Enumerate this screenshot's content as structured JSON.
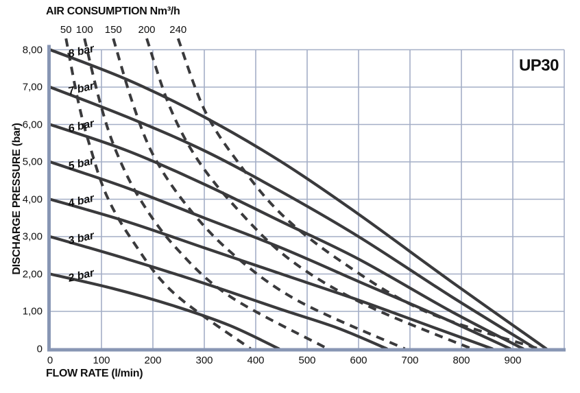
{
  "model_label": "UP30",
  "chart_data": {
    "type": "line",
    "title": "AIR CONSUMPTION Nm³/h",
    "xlabel": "FLOW RATE (l/min)",
    "ylabel": "DISCHARGE PRESSURE (bar)",
    "xlim": [
      0,
      1000
    ],
    "ylim": [
      0,
      8
    ],
    "grid": true,
    "legend_position": "none",
    "x_ticks": [
      {
        "v": 0,
        "label": "0"
      },
      {
        "v": 100,
        "label": "100"
      },
      {
        "v": 200,
        "label": "200"
      },
      {
        "v": 300,
        "label": "300"
      },
      {
        "v": 400,
        "label": "400"
      },
      {
        "v": 500,
        "label": "500"
      },
      {
        "v": 600,
        "label": "600"
      },
      {
        "v": 700,
        "label": "700"
      },
      {
        "v": 800,
        "label": "800"
      },
      {
        "v": 900,
        "label": "900"
      }
    ],
    "y_ticks": [
      {
        "v": 8,
        "label": "8,00"
      },
      {
        "v": 7,
        "label": "7,00"
      },
      {
        "v": 6,
        "label": "6,00"
      },
      {
        "v": 5,
        "label": "5,00"
      },
      {
        "v": 4,
        "label": "4,00"
      },
      {
        "v": 3,
        "label": "3,00"
      },
      {
        "v": 2,
        "label": "2,00"
      },
      {
        "v": 1,
        "label": "1,00"
      },
      {
        "v": 0,
        "label": "0"
      }
    ],
    "pressure_curves": [
      {
        "label": "8 bar",
        "start_pressure": 8,
        "max_flow": 965,
        "points": [
          [
            0,
            8.0
          ],
          [
            150,
            7.2
          ],
          [
            300,
            6.2
          ],
          [
            450,
            5.0
          ],
          [
            600,
            3.6
          ],
          [
            780,
            1.8
          ],
          [
            965,
            0
          ]
        ]
      },
      {
        "label": "7 bar",
        "start_pressure": 7,
        "max_flow": 945,
        "points": [
          [
            0,
            7.0
          ],
          [
            150,
            6.2
          ],
          [
            300,
            5.3
          ],
          [
            450,
            4.2
          ],
          [
            600,
            3.0
          ],
          [
            780,
            1.4
          ],
          [
            945,
            0
          ]
        ]
      },
      {
        "label": "6 bar",
        "start_pressure": 6,
        "max_flow": 920,
        "points": [
          [
            0,
            6.0
          ],
          [
            150,
            5.3
          ],
          [
            300,
            4.4
          ],
          [
            450,
            3.4
          ],
          [
            600,
            2.4
          ],
          [
            780,
            1.0
          ],
          [
            920,
            0
          ]
        ]
      },
      {
        "label": "5 bar",
        "start_pressure": 5,
        "max_flow": 895,
        "points": [
          [
            0,
            5.0
          ],
          [
            150,
            4.3
          ],
          [
            300,
            3.5
          ],
          [
            450,
            2.7
          ],
          [
            600,
            1.8
          ],
          [
            760,
            0.85
          ],
          [
            895,
            0
          ]
        ]
      },
      {
        "label": "4 bar",
        "start_pressure": 4,
        "max_flow": 860,
        "points": [
          [
            0,
            4.0
          ],
          [
            150,
            3.4
          ],
          [
            300,
            2.7
          ],
          [
            450,
            2.0
          ],
          [
            600,
            1.3
          ],
          [
            740,
            0.6
          ],
          [
            860,
            0
          ]
        ]
      },
      {
        "label": "3 bar",
        "start_pressure": 3,
        "max_flow": 655,
        "points": [
          [
            0,
            3.0
          ],
          [
            150,
            2.4
          ],
          [
            300,
            1.75
          ],
          [
            450,
            1.05
          ],
          [
            560,
            0.55
          ],
          [
            655,
            0
          ]
        ]
      },
      {
        "label": "2 bar",
        "start_pressure": 2,
        "max_flow": 445,
        "points": [
          [
            0,
            2.0
          ],
          [
            120,
            1.62
          ],
          [
            240,
            1.15
          ],
          [
            350,
            0.62
          ],
          [
            445,
            0
          ]
        ]
      }
    ],
    "air_curves": [
      {
        "label": "50",
        "label_flow": 31,
        "max_flow": 390,
        "points": [
          [
            31,
            8.3
          ],
          [
            55,
            6.6
          ],
          [
            78,
            5.4
          ],
          [
            110,
            4.1
          ],
          [
            160,
            2.9
          ],
          [
            240,
            1.5
          ],
          [
            390,
            0
          ]
        ]
      },
      {
        "label": "100",
        "label_flow": 67,
        "max_flow": 540,
        "points": [
          [
            67,
            8.3
          ],
          [
            97,
            6.6
          ],
          [
            128,
            5.3
          ],
          [
            175,
            4.0
          ],
          [
            245,
            2.7
          ],
          [
            350,
            1.4
          ],
          [
            540,
            0
          ]
        ]
      },
      {
        "label": "150",
        "label_flow": 123,
        "max_flow": 690,
        "points": [
          [
            123,
            8.3
          ],
          [
            160,
            6.6
          ],
          [
            200,
            5.2
          ],
          [
            262,
            3.9
          ],
          [
            350,
            2.6
          ],
          [
            480,
            1.3
          ],
          [
            690,
            0
          ]
        ]
      },
      {
        "label": "200",
        "label_flow": 188,
        "max_flow": 820,
        "points": [
          [
            188,
            8.3
          ],
          [
            232,
            6.5
          ],
          [
            285,
            5.1
          ],
          [
            360,
            3.8
          ],
          [
            465,
            2.4
          ],
          [
            610,
            1.2
          ],
          [
            820,
            0
          ]
        ]
      },
      {
        "label": "240",
        "label_flow": 249,
        "max_flow": 950,
        "points": [
          [
            249,
            8.3
          ],
          [
            300,
            6.4
          ],
          [
            365,
            5.0
          ],
          [
            450,
            3.6
          ],
          [
            570,
            2.3
          ],
          [
            730,
            1.0
          ],
          [
            950,
            0
          ]
        ]
      }
    ]
  },
  "colors": {
    "grid": "#a3aec6",
    "axis": "#8896b4",
    "curve": "#3a3a3c",
    "text": "#101010",
    "background": "#ffffff"
  }
}
